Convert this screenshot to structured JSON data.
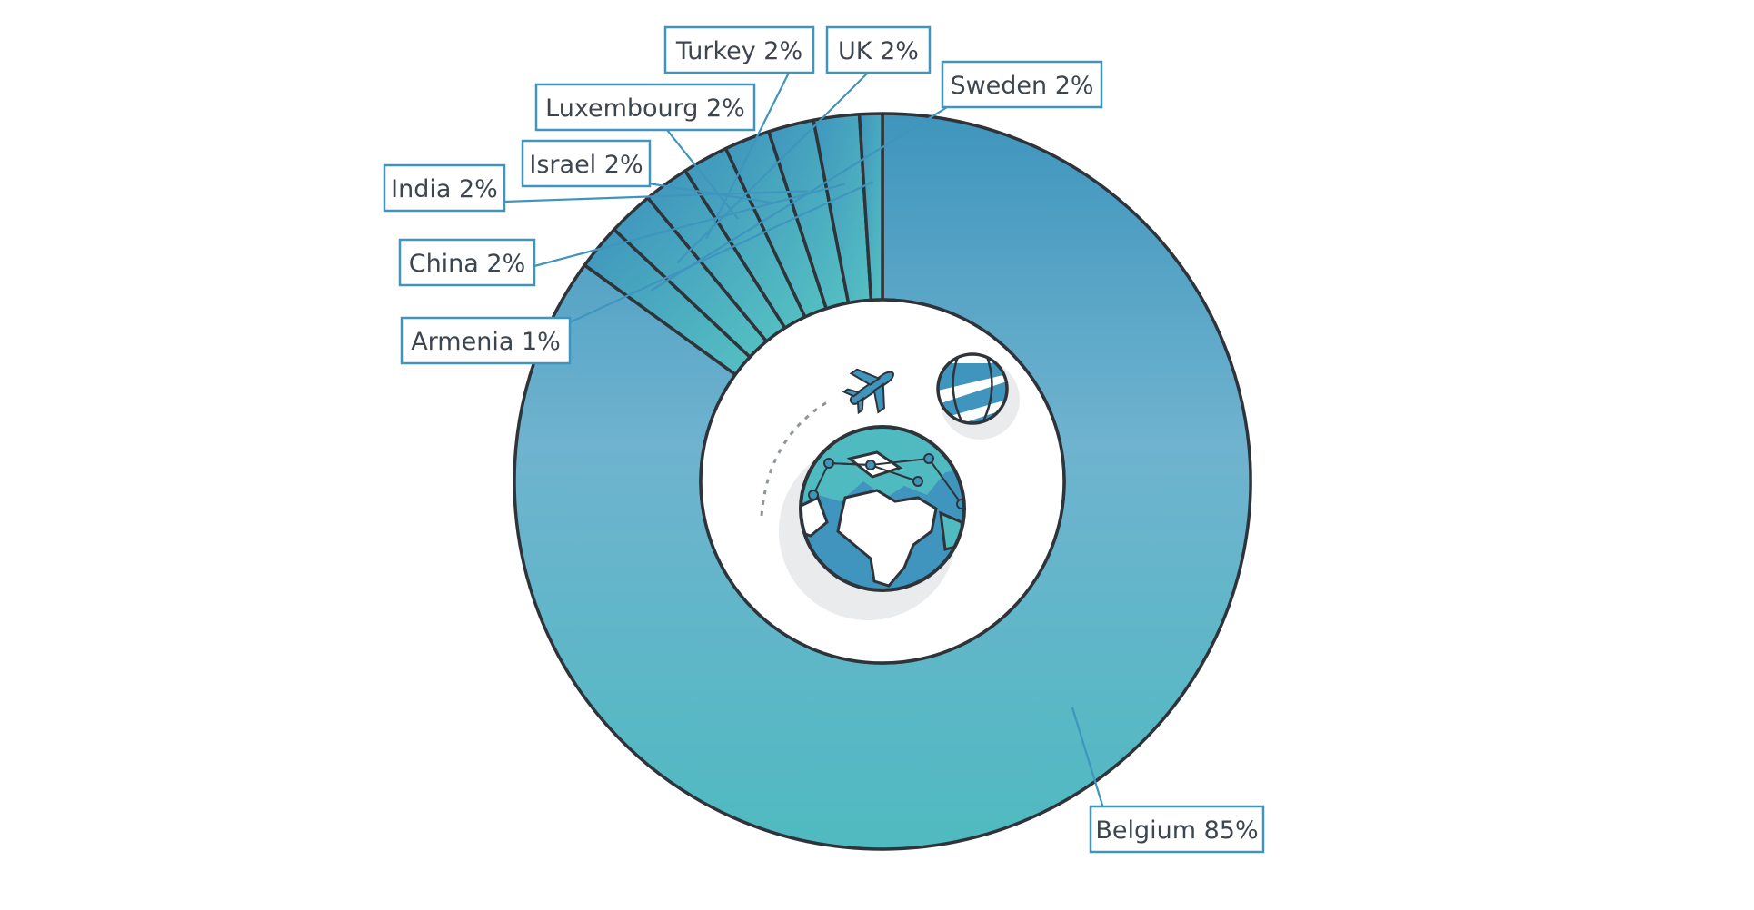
{
  "chart_data": {
    "type": "pie",
    "variant": "donut",
    "title": "",
    "legend": "none",
    "labels": [
      "Belgium",
      "Sweden",
      "UK",
      "Turkey",
      "Luxembourg",
      "Israel",
      "India",
      "China",
      "Armenia"
    ],
    "values": [
      85,
      2,
      2,
      2,
      2,
      2,
      2,
      2,
      1
    ],
    "label_text": [
      "Belgium 85%",
      "Sweden 2%",
      "UK 2%",
      "Turkey 2%",
      "Luxembourg 2%",
      "Israel 2%",
      "India 2%",
      "China 2%",
      "Armenia 1%"
    ],
    "colors": {
      "gradient_top": "#3f95bd",
      "gradient_mid": "#6fb3cf",
      "gradient_bottom": "#4fbac0",
      "outline": "#2e343a",
      "label_border": "#3f95bd",
      "label_text": "#3d4650"
    },
    "center_icon": "globe-with-airplane-icon"
  }
}
